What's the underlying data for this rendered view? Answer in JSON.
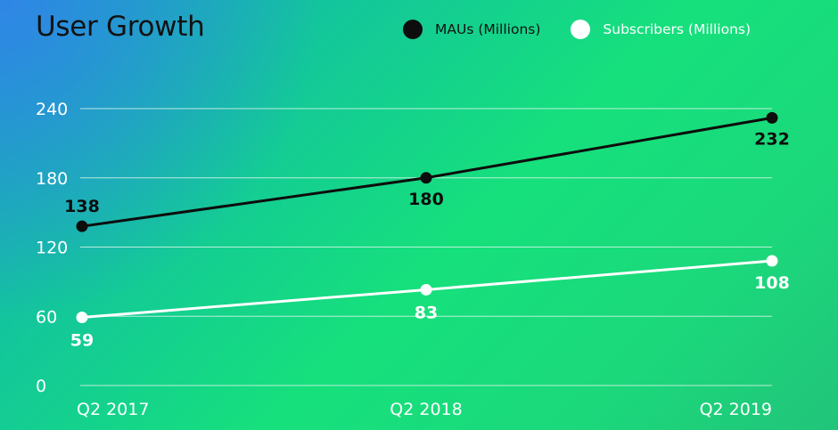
{
  "chart_data": {
    "type": "line",
    "title": "User Growth",
    "categories": [
      "Q2 2017",
      "Q2 2018",
      "Q2 2019"
    ],
    "series": [
      {
        "name": "MAUs (Millions)",
        "values": [
          138,
          180,
          232
        ],
        "color": "#0d0d0d",
        "label_color": "#0d0d0d"
      },
      {
        "name": "Subscribers (Millions)",
        "values": [
          59,
          83,
          108
        ],
        "color": "#ffffff",
        "label_color": "#ffffff"
      }
    ],
    "yticks": [
      0,
      60,
      120,
      180,
      240
    ],
    "ylim": [
      0,
      240
    ],
    "grid": true,
    "legend_position": "top-right",
    "grid_color": "#d8f5e8"
  }
}
